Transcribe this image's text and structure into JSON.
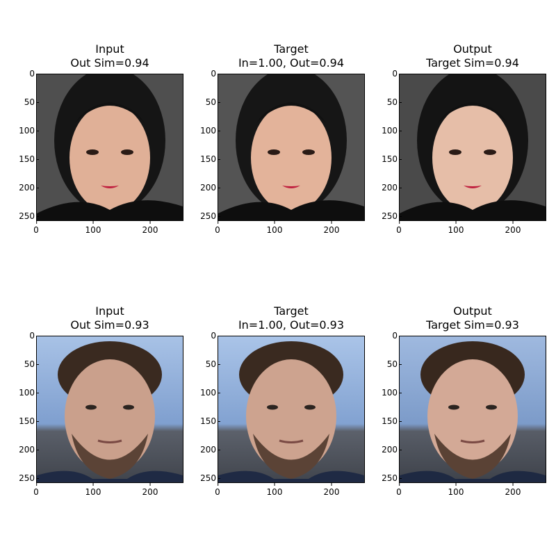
{
  "figure": {
    "rows": [
      {
        "panels": [
          {
            "title_line1": "Input",
            "title_line2": "Out Sim=0.94"
          },
          {
            "title_line1": "Target",
            "title_line2": "In=1.00, Out=0.94"
          },
          {
            "title_line1": "Output",
            "title_line2": "Target Sim=0.94"
          }
        ]
      },
      {
        "panels": [
          {
            "title_line1": "Input",
            "title_line2": "Out Sim=0.93"
          },
          {
            "title_line1": "Target",
            "title_line2": "In=1.00, Out=0.93"
          },
          {
            "title_line1": "Output",
            "title_line2": "Target Sim=0.93"
          }
        ]
      }
    ],
    "yticks": [
      "0",
      "50",
      "100",
      "150",
      "200",
      "250"
    ],
    "xticks": [
      "0",
      "100",
      "200"
    ]
  }
}
